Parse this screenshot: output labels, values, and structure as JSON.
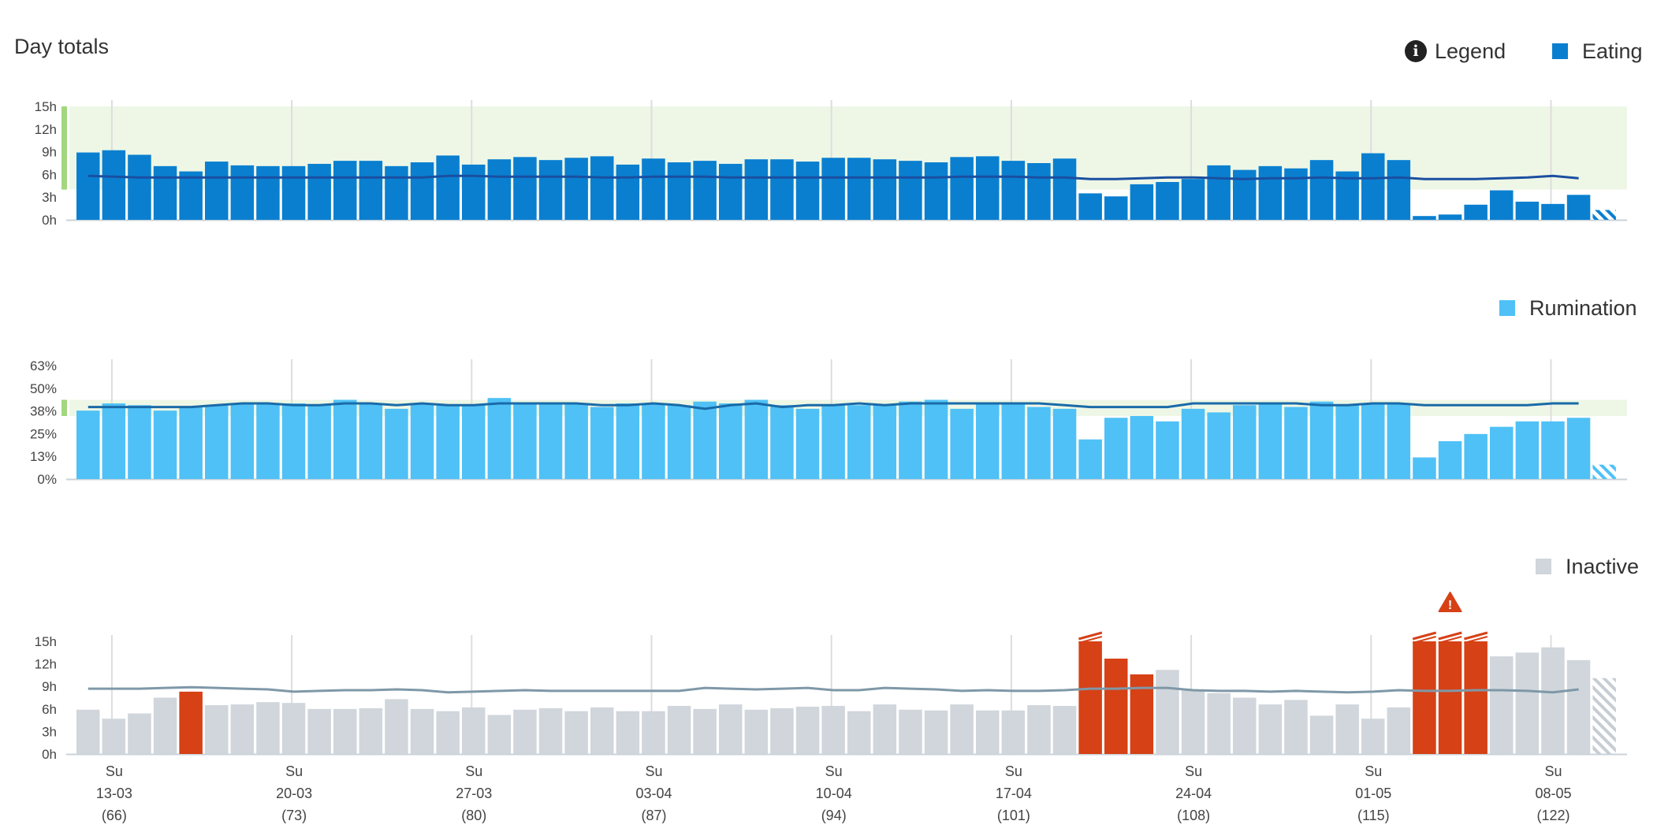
{
  "title": "Day totals",
  "legend": {
    "label": "Legend",
    "icon": "info-icon"
  },
  "colors": {
    "eating": "#0a7fd0",
    "eating_avg": "#1a4fa0",
    "rumination": "#4fc1f6",
    "rumination_avg": "#1a6aa8",
    "inactive": "#d0d6db",
    "inactive_avg": "#7f98a8",
    "alert": "#d64116",
    "target_band": "#eef7e6",
    "target_marker": "#a2d77e",
    "gridline": "#dddddd",
    "axis_text": "#444444"
  },
  "chart_data": [
    {
      "type": "bar",
      "name": "Eating",
      "unit": "h",
      "ylim": [
        0,
        15
      ],
      "yticks": [
        "0h",
        "3h",
        "6h",
        "9h",
        "12h",
        "15h"
      ],
      "target_band": [
        4,
        15
      ],
      "values": [
        8.9,
        9.2,
        8.6,
        7.1,
        6.4,
        7.7,
        7.2,
        7.1,
        7.1,
        7.4,
        7.8,
        7.8,
        7.1,
        7.6,
        8.5,
        7.3,
        8.0,
        8.3,
        7.9,
        8.2,
        8.4,
        7.3,
        8.1,
        7.6,
        7.8,
        7.4,
        8.0,
        8.0,
        7.7,
        8.2,
        8.2,
        8.0,
        7.8,
        7.6,
        8.3,
        8.4,
        7.8,
        7.5,
        8.1,
        3.5,
        3.1,
        4.7,
        5.0,
        5.4,
        7.2,
        6.6,
        7.1,
        6.8,
        7.9,
        6.4,
        8.8,
        7.9,
        0.5,
        0.7,
        2.0,
        3.9,
        2.4,
        2.1,
        3.3,
        1.3
      ],
      "average": [
        5.8,
        5.7,
        5.6,
        5.6,
        5.6,
        5.6,
        5.6,
        5.6,
        5.6,
        5.6,
        5.6,
        5.6,
        5.6,
        5.6,
        5.8,
        5.8,
        5.7,
        5.7,
        5.7,
        5.7,
        5.6,
        5.6,
        5.7,
        5.7,
        5.7,
        5.6,
        5.6,
        5.6,
        5.6,
        5.6,
        5.6,
        5.6,
        5.6,
        5.6,
        5.7,
        5.7,
        5.7,
        5.6,
        5.6,
        5.4,
        5.4,
        5.5,
        5.6,
        5.6,
        5.5,
        5.4,
        5.5,
        5.5,
        5.6,
        5.5,
        5.5,
        5.6,
        5.4,
        5.4,
        5.4,
        5.5,
        5.6,
        5.8,
        5.5
      ],
      "alerts": [],
      "partial_last": true
    },
    {
      "type": "bar",
      "name": "Rumination",
      "unit": "%",
      "ylim": [
        0,
        63
      ],
      "yticks": [
        "0%",
        "13%",
        "25%",
        "38%",
        "50%",
        "63%"
      ],
      "target_band": [
        35,
        44
      ],
      "values": [
        38,
        42,
        41,
        38,
        40,
        41,
        42,
        42,
        42,
        41,
        44,
        42,
        39,
        42,
        41,
        41,
        45,
        42,
        42,
        42,
        40,
        42,
        42,
        41,
        43,
        42,
        44,
        41,
        39,
        41,
        41,
        41,
        43,
        44,
        39,
        42,
        42,
        40,
        39,
        22,
        34,
        35,
        32,
        39,
        37,
        41,
        42,
        40,
        43,
        41,
        42,
        42,
        12,
        21,
        25,
        29,
        32,
        32,
        34,
        8
      ],
      "average": [
        40,
        40,
        40,
        40,
        40,
        41,
        42,
        42,
        41,
        41,
        42,
        42,
        41,
        42,
        41,
        41,
        42,
        42,
        42,
        42,
        41,
        41,
        42,
        41,
        39,
        41,
        42,
        40,
        41,
        41,
        42,
        41,
        42,
        42,
        42,
        42,
        42,
        42,
        41,
        40,
        40,
        40,
        40,
        42,
        42,
        42,
        42,
        42,
        41,
        41,
        42,
        42,
        41,
        41,
        41,
        41,
        41,
        42,
        42
      ],
      "alerts": [],
      "partial_last": true
    },
    {
      "type": "bar",
      "name": "Inactive",
      "unit": "h",
      "ylim": [
        0,
        15
      ],
      "yticks": [
        "0h",
        "3h",
        "6h",
        "9h",
        "12h",
        "15h"
      ],
      "values": [
        5.9,
        4.7,
        5.4,
        7.5,
        8.3,
        6.5,
        6.6,
        6.9,
        6.8,
        6.0,
        6.0,
        6.1,
        7.3,
        6.0,
        5.7,
        6.2,
        5.2,
        5.9,
        6.1,
        5.7,
        6.2,
        5.7,
        5.7,
        6.4,
        6.0,
        6.6,
        5.9,
        6.1,
        6.3,
        6.4,
        5.7,
        6.6,
        5.9,
        5.8,
        6.6,
        5.8,
        5.8,
        6.5,
        6.4,
        15.0,
        12.7,
        10.6,
        11.2,
        8.6,
        8.1,
        7.5,
        6.6,
        7.2,
        5.1,
        6.6,
        4.7,
        6.2,
        15.0,
        15.0,
        15.0,
        13.0,
        13.5,
        14.2,
        12.5,
        10.1
      ],
      "average": [
        8.7,
        8.7,
        8.7,
        8.8,
        8.9,
        8.8,
        8.7,
        8.6,
        8.3,
        8.4,
        8.5,
        8.5,
        8.6,
        8.5,
        8.2,
        8.3,
        8.4,
        8.5,
        8.4,
        8.4,
        8.4,
        8.4,
        8.4,
        8.4,
        8.8,
        8.7,
        8.6,
        8.7,
        8.8,
        8.5,
        8.5,
        8.8,
        8.7,
        8.6,
        8.4,
        8.5,
        8.4,
        8.4,
        8.5,
        8.7,
        8.7,
        8.8,
        8.8,
        8.5,
        8.4,
        8.4,
        8.3,
        8.4,
        8.3,
        8.2,
        8.3,
        8.5,
        8.4,
        8.4,
        8.5,
        8.5,
        8.4,
        8.2,
        8.6
      ],
      "alerts": [
        4,
        39,
        40,
        41,
        52,
        53,
        54
      ],
      "clipped": [
        39,
        52,
        53,
        54
      ],
      "warning_at": 53,
      "partial_last": true
    }
  ],
  "x_axis": {
    "week_starts": [
      1,
      8,
      15,
      22,
      29,
      36,
      43,
      50,
      57
    ],
    "labels": [
      {
        "day": "Su",
        "date": "13-03",
        "num": "(66)"
      },
      {
        "day": "Su",
        "date": "20-03",
        "num": "(73)"
      },
      {
        "day": "Su",
        "date": "27-03",
        "num": "(80)"
      },
      {
        "day": "Su",
        "date": "03-04",
        "num": "(87)"
      },
      {
        "day": "Su",
        "date": "10-04",
        "num": "(94)"
      },
      {
        "day": "Su",
        "date": "17-04",
        "num": "(101)"
      },
      {
        "day": "Su",
        "date": "24-04",
        "num": "(108)"
      },
      {
        "day": "Su",
        "date": "01-05",
        "num": "(115)"
      },
      {
        "day": "Su",
        "date": "08-05",
        "num": "(122)"
      }
    ]
  }
}
